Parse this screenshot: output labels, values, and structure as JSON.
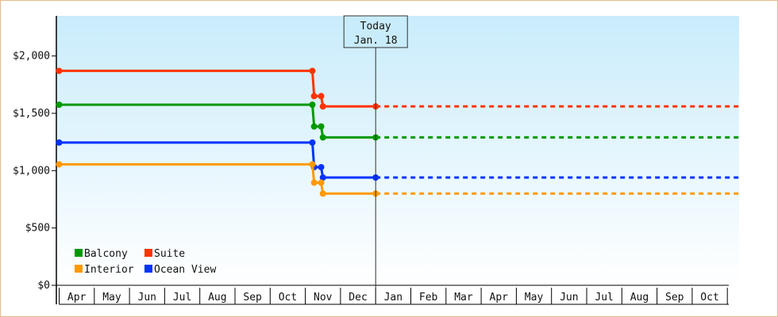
{
  "chart_data": {
    "type": "line",
    "step": true,
    "ylim": [
      0,
      2350
    ],
    "y_ticks": [
      {
        "value": 0,
        "label": "$0"
      },
      {
        "value": 500,
        "label": "$500"
      },
      {
        "value": 1000,
        "label": "$1,000"
      },
      {
        "value": 1500,
        "label": "$1,500"
      },
      {
        "value": 2000,
        "label": "$2,000"
      }
    ],
    "x_months": [
      "Apr",
      "May",
      "Jun",
      "Jul",
      "Aug",
      "Sep",
      "Oct",
      "Nov",
      "Dec",
      "Jan",
      "Feb",
      "Mar",
      "Apr",
      "May",
      "Jun",
      "Jul",
      "Aug",
      "Sep",
      "Oct"
    ],
    "x_range": [
      0,
      19
    ],
    "today": {
      "line1": "Today",
      "line2": "Jan. 18",
      "x": 9.0
    },
    "series": [
      {
        "name": "Suite",
        "color": "#ff3300",
        "points": [
          [
            0,
            1870
          ],
          [
            7.2,
            1870
          ],
          [
            7.25,
            1650
          ],
          [
            7.45,
            1650
          ],
          [
            7.5,
            1560
          ],
          [
            9.0,
            1560
          ]
        ],
        "projected_to": 19
      },
      {
        "name": "Balcony",
        "color": "#009900",
        "points": [
          [
            0,
            1575
          ],
          [
            7.2,
            1575
          ],
          [
            7.25,
            1385
          ],
          [
            7.45,
            1385
          ],
          [
            7.5,
            1290
          ],
          [
            9.0,
            1290
          ]
        ],
        "projected_to": 19
      },
      {
        "name": "Ocean View",
        "color": "#0033ff",
        "points": [
          [
            0,
            1245
          ],
          [
            7.2,
            1245
          ],
          [
            7.25,
            1030
          ],
          [
            7.45,
            1030
          ],
          [
            7.5,
            940
          ],
          [
            9.0,
            940
          ]
        ],
        "projected_to": 19
      },
      {
        "name": "Interior",
        "color": "#ff9900",
        "points": [
          [
            0,
            1055
          ],
          [
            7.2,
            1055
          ],
          [
            7.25,
            895
          ],
          [
            7.45,
            895
          ],
          [
            7.5,
            800
          ],
          [
            9.0,
            800
          ]
        ],
        "projected_to": 19
      }
    ],
    "legend": {
      "placement": "bottom-left",
      "items": [
        {
          "label": "Balcony",
          "color": "#009900"
        },
        {
          "label": "Suite",
          "color": "#ff3300"
        },
        {
          "label": "Interior",
          "color": "#ff9900"
        },
        {
          "label": "Ocean View",
          "color": "#0033ff"
        }
      ]
    },
    "colors": {
      "bg_top": "#c9ecfb",
      "bg_bottom": "#ffffff",
      "frame": "#e6b98a"
    }
  }
}
